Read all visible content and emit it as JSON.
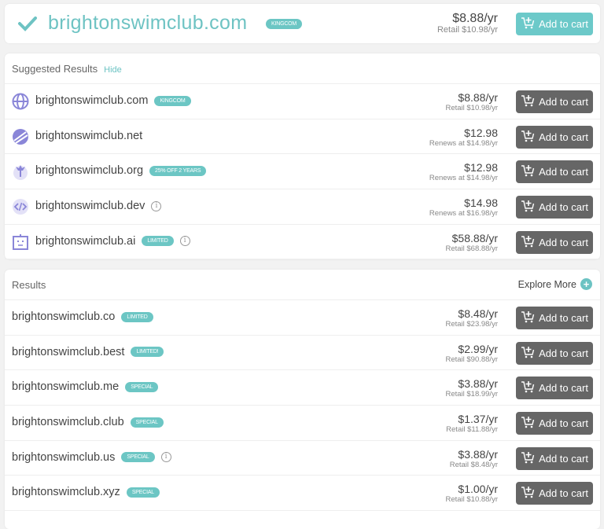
{
  "colors": {
    "accent": "#6cc6c4",
    "button": "#666666"
  },
  "top": {
    "domain": "brightonswimclub.com",
    "badge": "KINGCOM",
    "price": "$8.88/yr",
    "sub": "Retail $10.98/yr",
    "button": "Add to cart",
    "icon": "check-icon"
  },
  "suggested": {
    "title": "Suggested Results",
    "hide": "Hide",
    "items": [
      {
        "domain": "brightonswimclub.com",
        "badge": "KINGCOM",
        "info": false,
        "icon": "globe-icon",
        "price": "$8.88/yr",
        "sub": "Retail $10.98/yr",
        "button": "Add to cart"
      },
      {
        "domain": "brightonswimclub.net",
        "badge": "",
        "info": false,
        "icon": "net-icon",
        "price": "$12.98",
        "sub": "Renews at $14.98/yr",
        "button": "Add to cart"
      },
      {
        "domain": "brightonswimclub.org",
        "badge": "25% OFF 2 YEARS",
        "info": false,
        "icon": "org-icon",
        "price": "$12.98",
        "sub": "Renews at $14.98/yr",
        "button": "Add to cart"
      },
      {
        "domain": "brightonswimclub.dev",
        "badge": "",
        "info": true,
        "icon": "code-icon",
        "price": "$14.98",
        "sub": "Renews at $16.98/yr",
        "button": "Add to cart"
      },
      {
        "domain": "brightonswimclub.ai",
        "badge": "LIMITED",
        "info": true,
        "icon": "robot-icon",
        "price": "$58.88/yr",
        "sub": "Retail $68.88/yr",
        "button": "Add to cart"
      }
    ]
  },
  "results": {
    "title": "Results",
    "explore": "Explore More",
    "items": [
      {
        "domain": "brightonswimclub.co",
        "badge": "LIMITED",
        "info": false,
        "price": "$8.48/yr",
        "sub": "Retail $23.98/yr",
        "button": "Add to cart"
      },
      {
        "domain": "brightonswimclub.best",
        "badge": "LIMITED!",
        "info": false,
        "price": "$2.99/yr",
        "sub": "Retail $90.88/yr",
        "button": "Add to cart"
      },
      {
        "domain": "brightonswimclub.me",
        "badge": "SPECIAL",
        "info": false,
        "price": "$3.88/yr",
        "sub": "Retail $18.99/yr",
        "button": "Add to cart"
      },
      {
        "domain": "brightonswimclub.club",
        "badge": "SPECIAL",
        "info": false,
        "price": "$1.37/yr",
        "sub": "Retail $11.88/yr",
        "button": "Add to cart"
      },
      {
        "domain": "brightonswimclub.us",
        "badge": "SPECIAL",
        "info": true,
        "price": "$3.88/yr",
        "sub": "Retail $8.48/yr",
        "button": "Add to cart"
      },
      {
        "domain": "brightonswimclub.xyz",
        "badge": "SPECIAL",
        "info": false,
        "price": "$1.00/yr",
        "sub": "Retail $10.88/yr",
        "button": "Add to cart"
      }
    ]
  }
}
